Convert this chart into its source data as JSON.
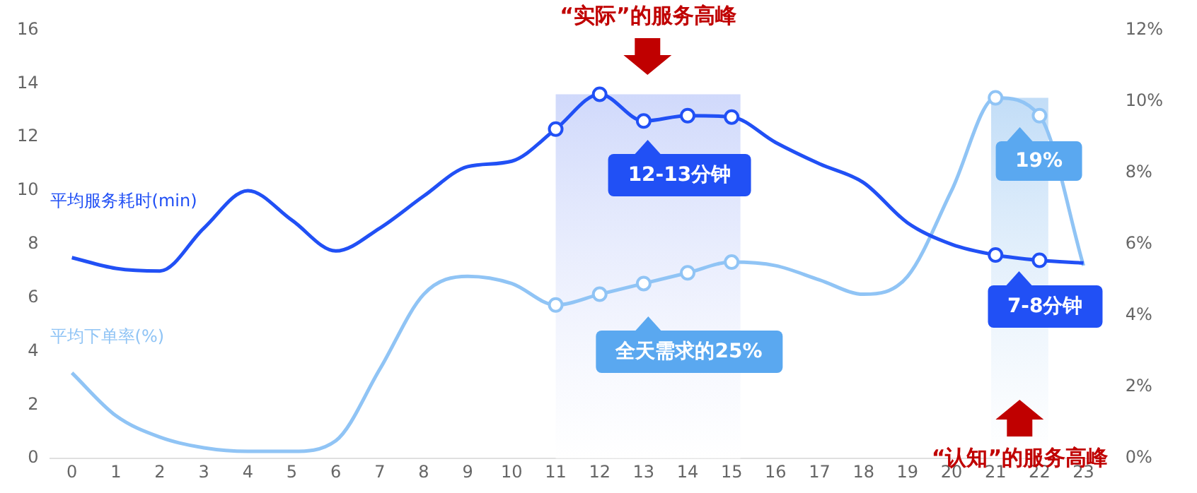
{
  "chart_data": {
    "type": "line",
    "x": [
      0,
      1,
      2,
      3,
      4,
      5,
      6,
      7,
      8,
      9,
      10,
      11,
      12,
      13,
      14,
      15,
      16,
      17,
      18,
      19,
      20,
      21,
      22,
      23
    ],
    "series": [
      {
        "name": "平均服务耗时(min)",
        "color": "#2150f5",
        "values": [
          7.5,
          7.1,
          7.0,
          8.6,
          10.0,
          8.9,
          7.75,
          8.6,
          9.8,
          10.9,
          11.1,
          12.3,
          13.6,
          12.6,
          12.8,
          12.75,
          11.8,
          11.0,
          10.3,
          8.8,
          8.0,
          7.6,
          7.4,
          7.3
        ]
      },
      {
        "name": "平均下单率(%)",
        "color": "#90c4f5",
        "axis": "y2",
        "values": [
          2.4,
          1.2,
          0.6,
          0.3,
          0.2,
          0.2,
          0.5,
          2.5,
          4.6,
          5.1,
          4.9,
          4.3,
          4.6,
          4.9,
          5.2,
          5.5,
          5.4,
          5.0,
          4.6,
          5.1,
          7.5,
          10.1,
          9.6,
          5.4
        ]
      }
    ],
    "xlim": [
      -0.5,
      23.5
    ],
    "xticks": [
      0,
      1,
      2,
      3,
      4,
      5,
      6,
      7,
      8,
      9,
      10,
      11,
      12,
      13,
      14,
      15,
      16,
      17,
      18,
      19,
      20,
      21,
      22,
      23
    ],
    "ylim": [
      0,
      16
    ],
    "yticks": [
      0,
      2,
      4,
      6,
      8,
      10,
      12,
      14,
      16
    ],
    "y2lim": [
      0,
      12
    ],
    "y2ticks": [
      {
        "value": 0,
        "label": "0%"
      },
      {
        "value": 2,
        "label": "2%"
      },
      {
        "value": 4,
        "label": "4%"
      },
      {
        "value": 6,
        "label": "6%"
      },
      {
        "value": 8,
        "label": "8%"
      },
      {
        "value": 10,
        "label": "10%"
      },
      {
        "value": 12,
        "label": "12%"
      }
    ],
    "bands": [
      {
        "axis": "x",
        "from": 11,
        "to": 15.2,
        "color": "#d0d9fb"
      },
      {
        "axis": "x",
        "from": 20.9,
        "to": 22.2,
        "color": "#c2ddf7"
      }
    ],
    "annotations": [
      "“实际”的服务高峰",
      "“认知”的服务高峰",
      "12-13分钟",
      "全天需求的25%",
      "19%",
      "7-8分钟"
    ],
    "line_style": "solid",
    "grid": false,
    "legend": false
  }
}
